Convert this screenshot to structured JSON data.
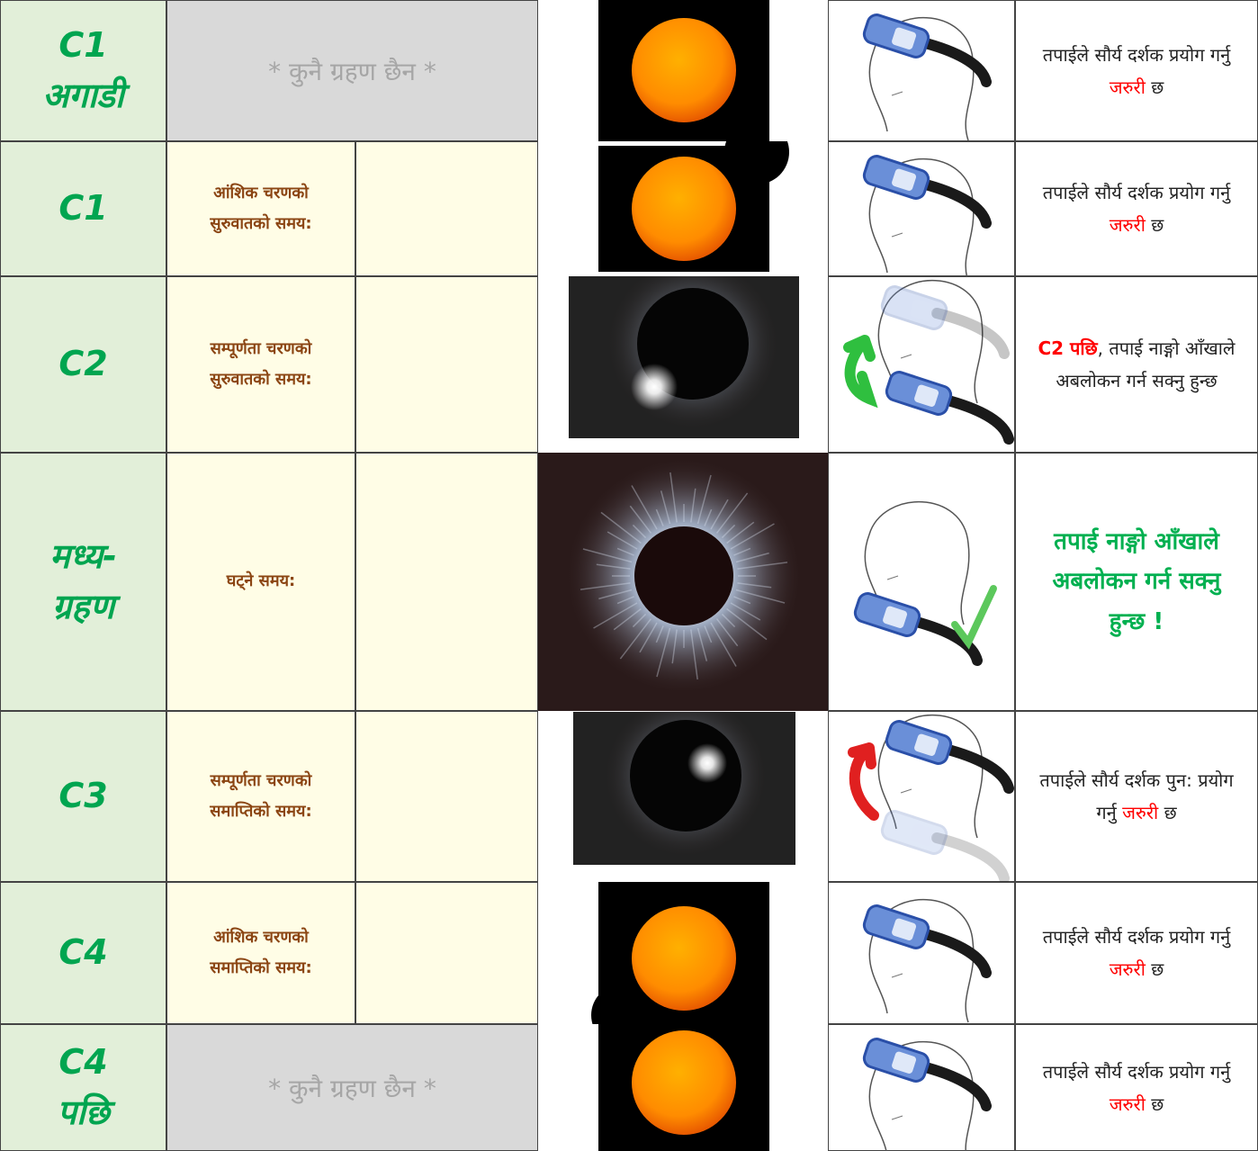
{
  "rows": [
    {
      "phase": [
        "C1",
        "अगाडी"
      ],
      "no_eclipse": "* कुनै ग्रहण छैन *",
      "instruction": [
        {
          "text": "तपाईले सौर्य दर्शक प्रयोग गर्नु "
        },
        {
          "text": "जरुरी",
          "color": "#ff0000"
        },
        {
          "text": " छ"
        }
      ]
    },
    {
      "phase": [
        "C1"
      ],
      "description": [
        "आंशिक चरणको",
        "सुरुवातको समय:"
      ],
      "instruction": [
        {
          "text": "तपाईले सौर्य दर्शक प्रयोग गर्नु "
        },
        {
          "text": "जरुरी",
          "color": "#ff0000"
        },
        {
          "text": " छ"
        }
      ]
    },
    {
      "phase": [
        "C2"
      ],
      "description": [
        "सम्पूर्णता  चरणको",
        "सुरुवातको समय:"
      ],
      "instruction": [
        {
          "text": "C2 पछि",
          "color": "#ff0000",
          "bold": true
        },
        {
          "text": ", तपाई नाङ्गो आँखाले अबलोकन गर्न सक्नु हुन्छ"
        }
      ]
    },
    {
      "phase": [
        "मध्य-",
        "ग्रहण"
      ],
      "description": [
        "घट्ने समय:"
      ],
      "instruction": [
        {
          "text": "तपाई नाङ्गो आँखाले अबलोकन गर्न सक्नु हुन्छ !",
          "color": "#00b050",
          "bold": true,
          "large": true
        }
      ]
    },
    {
      "phase": [
        "C3"
      ],
      "description": [
        "सम्पूर्णता  चरणको",
        "समाप्तिको समय:"
      ],
      "instruction": [
        {
          "text": "तपाईले सौर्य दर्शक पुन: प्रयोग गर्नु "
        },
        {
          "text": "जरुरी",
          "color": "#ff0000"
        },
        {
          "text": " छ"
        }
      ]
    },
    {
      "phase": [
        "C4"
      ],
      "description": [
        "आंशिक चरणको",
        "समाप्तिको समय:"
      ],
      "instruction": [
        {
          "text": "तपाईले सौर्य दर्शक प्रयोग गर्नु "
        },
        {
          "text": "जरुरी",
          "color": "#ff0000"
        },
        {
          "text": " छ"
        }
      ]
    },
    {
      "phase": [
        "C4",
        "पछि"
      ],
      "no_eclipse": "* कुनै ग्रहण छैन *",
      "instruction": [
        {
          "text": "तपाईले सौर्य दर्शक प्रयोग गर्नु "
        },
        {
          "text": "जरुरी",
          "color": "#ff0000"
        },
        {
          "text": " छ"
        }
      ]
    }
  ]
}
